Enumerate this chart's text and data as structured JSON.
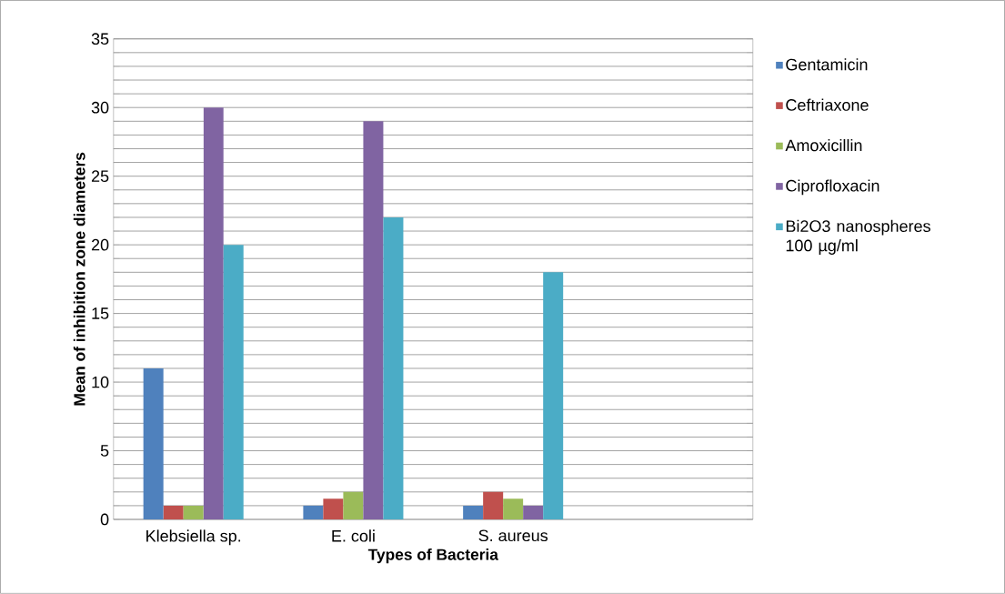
{
  "chart_data": {
    "type": "bar",
    "xlabel": "Types of Bacteria",
    "ylabel": "Mean of inhibition zone diameters",
    "categories": [
      "Klebsiella sp.",
      "E. coli",
      "S. aureus",
      null
    ],
    "series": [
      {
        "name": "Gentamicin",
        "color": "#4f81bd",
        "values": [
          11,
          1,
          1,
          null
        ]
      },
      {
        "name": "Ceftriaxone",
        "color": "#c0504d",
        "values": [
          1,
          1.5,
          2,
          null
        ]
      },
      {
        "name": "Amoxicillin",
        "color": "#9bbb59",
        "values": [
          1,
          2,
          1.5,
          null
        ]
      },
      {
        "name": "Ciprofloxacin",
        "color": "#8064a2",
        "values": [
          30,
          29,
          1,
          null
        ]
      },
      {
        "name": "Bi2O3 nanospheres 100 µg/ml",
        "color": "#4bacc6",
        "values": [
          20,
          22,
          18,
          null
        ]
      }
    ],
    "ylim": [
      0,
      35
    ],
    "yticks": [
      0,
      {
        "value": 1,
        "label": null
      },
      {
        "value": 2,
        "label": null
      },
      {
        "value": 3,
        "label": null
      },
      {
        "value": 4,
        "label": null
      },
      5,
      {
        "value": 6,
        "label": null
      },
      {
        "value": 7,
        "label": null
      },
      {
        "value": 8,
        "label": null
      },
      {
        "value": 9,
        "label": null
      },
      10,
      {
        "value": 11,
        "label": null
      },
      {
        "value": 12,
        "label": null
      },
      {
        "value": 13,
        "label": null
      },
      {
        "value": 14,
        "label": null
      },
      15,
      {
        "value": 16,
        "label": null
      },
      {
        "value": 17,
        "label": null
      },
      {
        "value": 18,
        "label": null
      },
      {
        "value": 19,
        "label": null
      },
      20,
      {
        "value": 21,
        "label": null
      },
      {
        "value": 22,
        "label": null
      },
      {
        "value": 23,
        "label": null
      },
      {
        "value": 24,
        "label": null
      },
      25,
      {
        "value": 26,
        "label": null
      },
      {
        "value": 27,
        "label": null
      },
      {
        "value": 28,
        "label": null
      },
      {
        "value": 29,
        "label": null
      },
      30,
      {
        "value": 31,
        "label": null
      },
      {
        "value": 32,
        "label": null
      },
      {
        "value": 33,
        "label": null
      },
      {
        "value": 34,
        "label": null
      },
      35
    ],
    "grid": "y",
    "legend": "right"
  }
}
